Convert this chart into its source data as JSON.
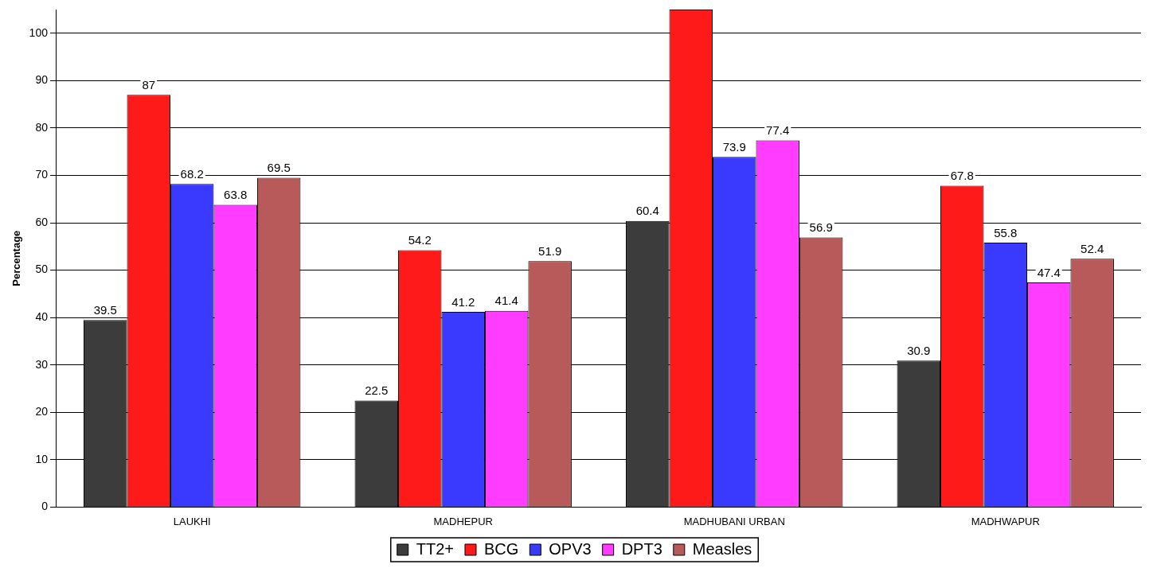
{
  "chart_data": {
    "type": "bar",
    "ylabel": "Percentage",
    "categories": [
      "LAUKHI",
      "MADHEPUR",
      "MADHUBANI URBAN",
      "MADHWAPUR"
    ],
    "series": [
      {
        "name": "TT2+",
        "color": "#3c3c3c",
        "values": [
          39.5,
          22.5,
          60.4,
          30.9
        ],
        "value_labels": [
          "39.5",
          "22.5",
          "60.4",
          "30.9"
        ]
      },
      {
        "name": "BCG",
        "color": "#ff1a1a",
        "values": [
          87,
          54.2,
          105,
          67.8
        ],
        "value_labels": [
          "87",
          "54.2",
          null,
          "67.8"
        ]
      },
      {
        "name": "OPV3",
        "color": "#3a3aff",
        "values": [
          68.2,
          41.2,
          73.9,
          55.8
        ],
        "value_labels": [
          "68.2",
          "41.2",
          "73.9",
          "55.8"
        ]
      },
      {
        "name": "DPT3",
        "color": "#ff3cff",
        "values": [
          63.8,
          41.4,
          77.4,
          47.4
        ],
        "value_labels": [
          "63.8",
          "41.4",
          "77.4",
          "47.4"
        ]
      },
      {
        "name": "Measles",
        "color": "#b85a5a",
        "values": [
          69.5,
          51.9,
          56.9,
          52.4
        ],
        "value_labels": [
          "69.5",
          "51.9",
          "56.9",
          "52.4"
        ]
      }
    ],
    "ylim": [
      0,
      105
    ],
    "yticks": [
      0,
      10,
      20,
      30,
      40,
      50,
      60,
      70,
      80,
      90,
      100
    ],
    "grid": "y",
    "legend": "bottom"
  }
}
